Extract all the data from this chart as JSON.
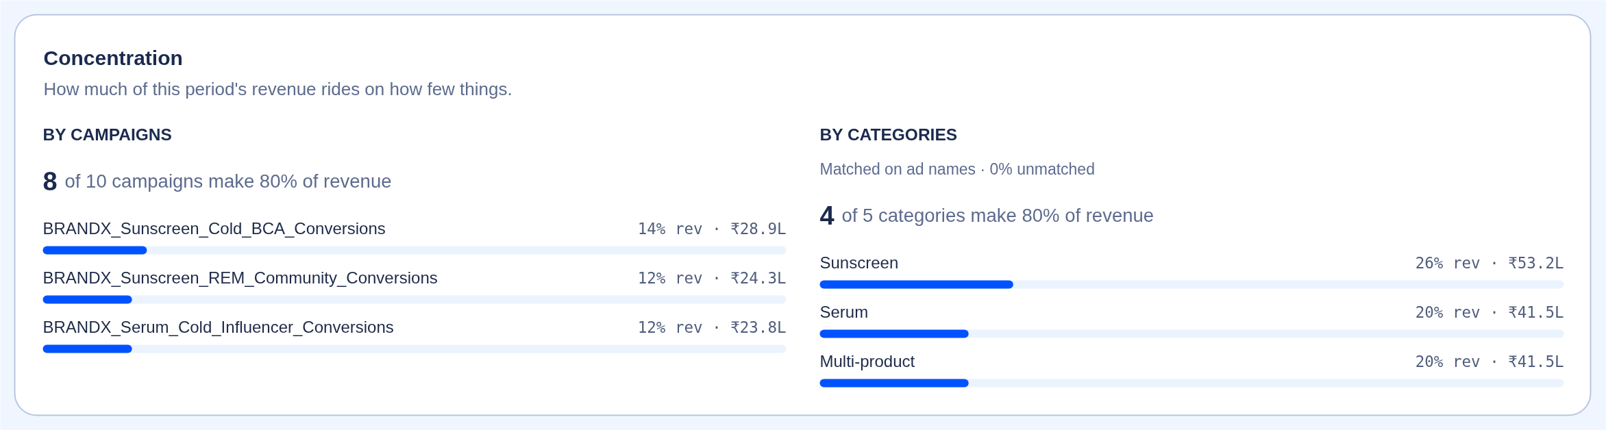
{
  "chart_data": [
    {
      "type": "other",
      "title": "Concentration",
      "subtitle": "How much of this period's revenue rides on how few things."
    },
    {
      "type": "bar",
      "orientation": "horizontal",
      "title": "BY CAMPAIGNS",
      "annotations": [
        "8 of 10 campaigns make 80% of revenue"
      ],
      "categories": [
        "BRANDX_Sunscreen_Cold_BCA_Conversions",
        "BRANDX_Sunscreen_REM_Community_Conversions",
        "BRANDX_Serum_Cold_Influencer_Conversions"
      ],
      "values": [
        14,
        12,
        12
      ],
      "value_labels": [
        "14% rev · ₹28.9L",
        "12% rev · ₹24.3L",
        "12% rev · ₹23.8L"
      ],
      "color": "#0052ff",
      "xlim": [
        0,
        100
      ],
      "tick_labels": false
    },
    {
      "type": "bar",
      "orientation": "horizontal",
      "title": "BY CATEGORIES",
      "subtitle": "Matched on ad names · 0% unmatched",
      "annotations": [
        "4 of 5 categories make 80% of revenue"
      ],
      "categories": [
        "Sunscreen",
        "Serum",
        "Multi-product"
      ],
      "values": [
        26,
        20,
        20
      ],
      "value_labels": [
        "26% rev · ₹53.2L",
        "20% rev · ₹41.5L",
        "20% rev · ₹41.5L"
      ],
      "color": "#0052ff",
      "xlim": [
        0,
        100
      ],
      "tick_labels": false
    }
  ]
}
